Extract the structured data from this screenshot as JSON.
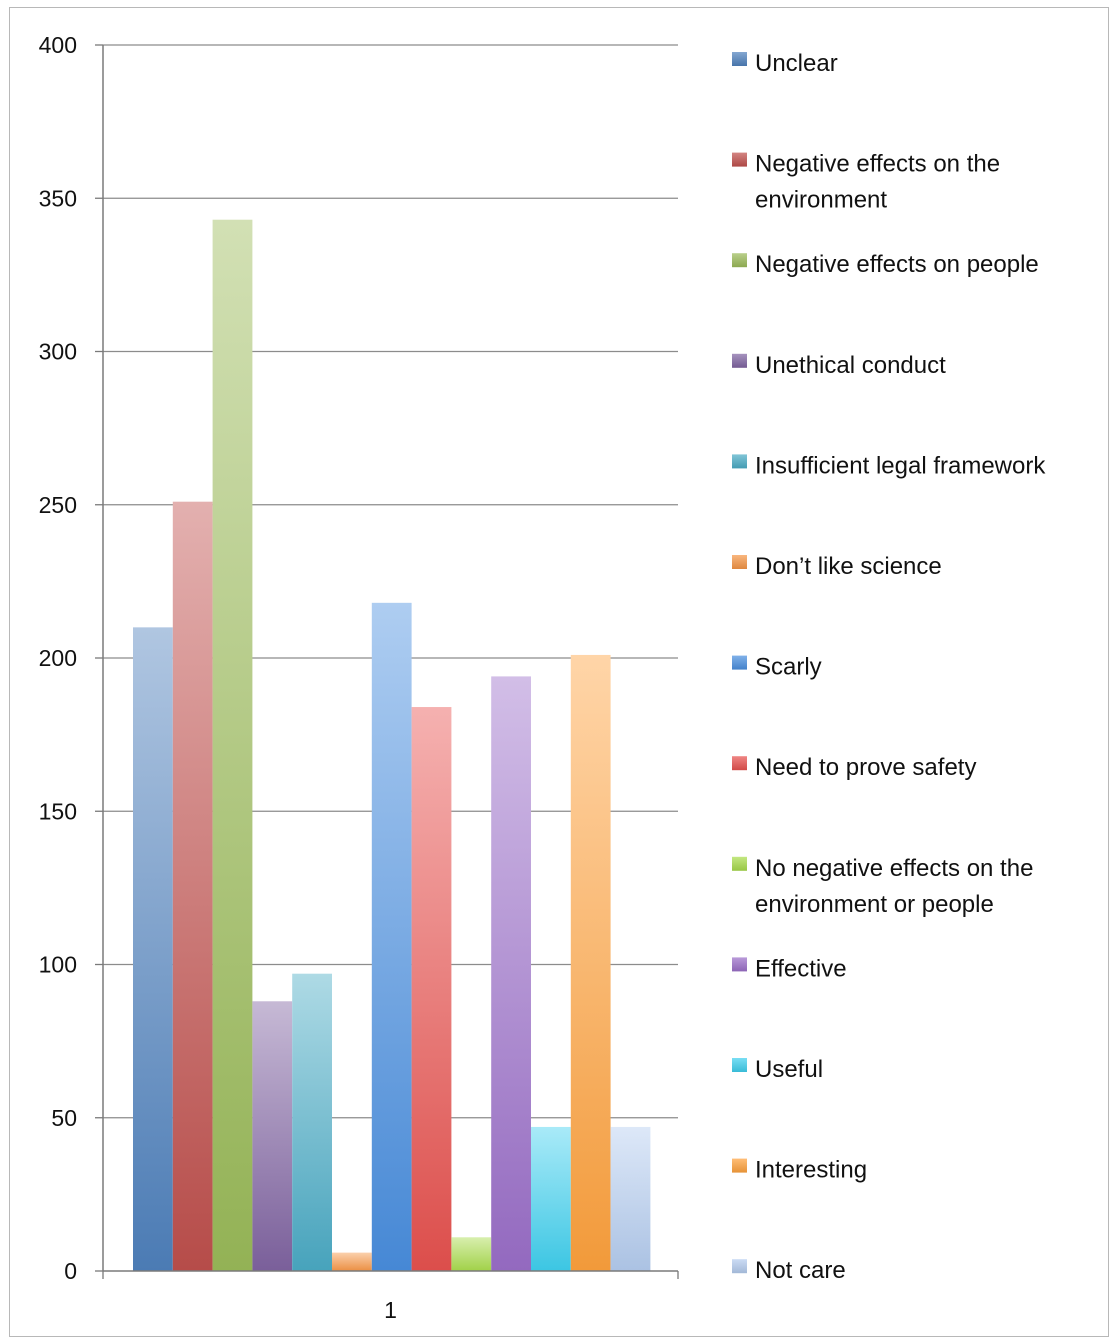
{
  "chart_data": {
    "type": "bar",
    "categories": [
      "1"
    ],
    "ylim": [
      0,
      400
    ],
    "yticks": [
      0,
      50,
      100,
      150,
      200,
      250,
      300,
      350,
      400
    ],
    "grid": true,
    "legend_position": "right",
    "series": [
      {
        "name": "Unclear",
        "values": [
          210
        ],
        "color": "#4f81bd"
      },
      {
        "name": "Negative effects on the environment",
        "values": [
          251
        ],
        "color": "#c0504d"
      },
      {
        "name": "Negative effects on people",
        "values": [
          343
        ],
        "color": "#9bbb59"
      },
      {
        "name": "Unethical conduct",
        "values": [
          88
        ],
        "color": "#8064a2"
      },
      {
        "name": "Insufficient legal framework",
        "values": [
          97
        ],
        "color": "#4bacc6"
      },
      {
        "name": "Don’t like science",
        "values": [
          6
        ],
        "color": "#f79646"
      },
      {
        "name": "Scarly",
        "values": [
          218
        ],
        "color": "#4a8fe0"
      },
      {
        "name": "Need to prove safety",
        "values": [
          184
        ],
        "color": "#e8524f"
      },
      {
        "name": "No negative effects on the environment or people",
        "values": [
          11
        ],
        "color": "#a9dc4c"
      },
      {
        "name": "Effective",
        "values": [
          194
        ],
        "color": "#9b6fc9"
      },
      {
        "name": "Useful",
        "values": [
          47
        ],
        "color": "#3fd0ef"
      },
      {
        "name": "Interesting",
        "values": [
          201
        ],
        "color": "#ffa23d"
      },
      {
        "name": "Not care",
        "values": [
          47
        ],
        "color": "#b4ccef"
      }
    ]
  }
}
